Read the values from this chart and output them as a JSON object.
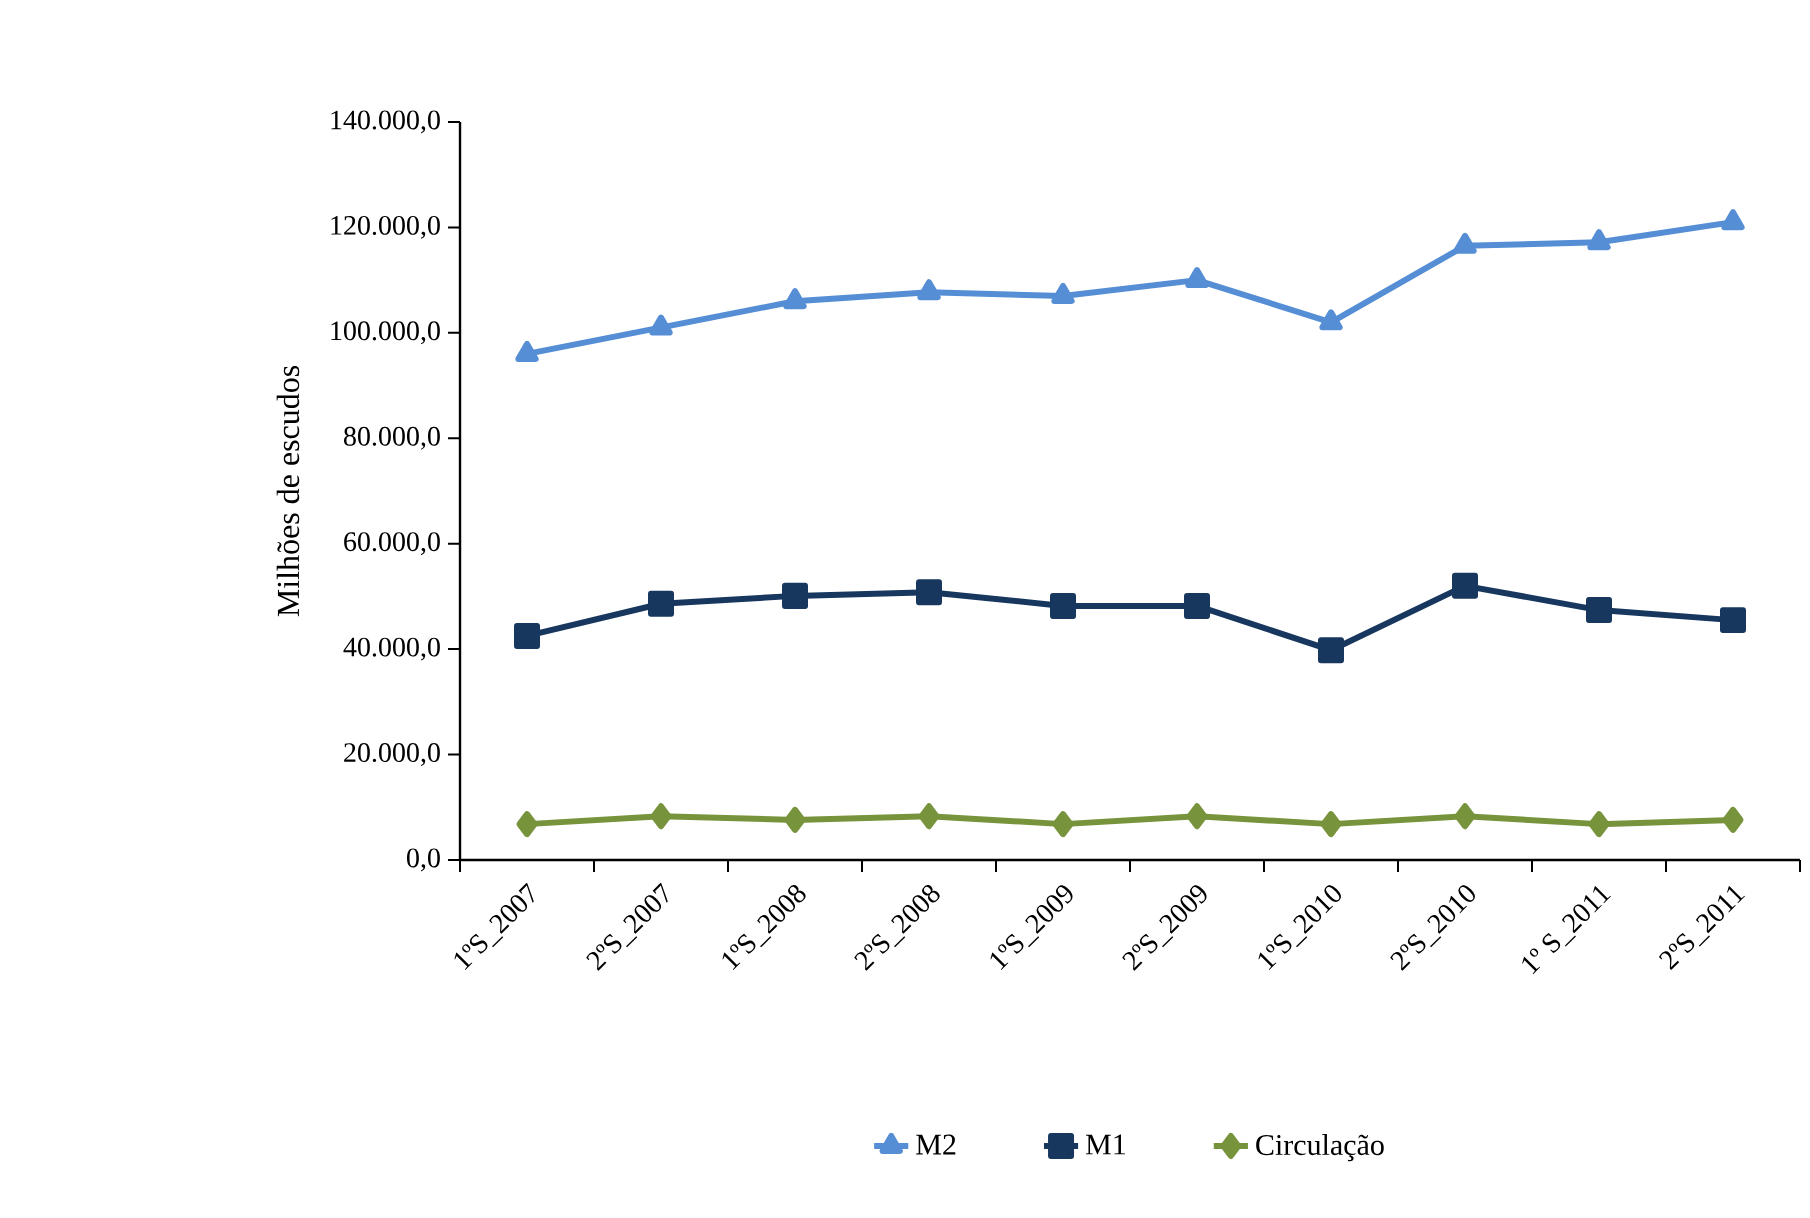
{
  "chart_data": {
    "type": "line",
    "ylabel": "Milhões de escudos",
    "categories": [
      "1ºS_2007",
      "2ºS_2007",
      "1ºS_2008",
      "2ºS_2008",
      "1ºS_2009",
      "2ºS_2009",
      "1ºS_2010",
      "2ºS_2010",
      "1º S_2011",
      "2ºS_2011"
    ],
    "series": [
      {
        "name": "M2",
        "color": "#558ed5",
        "marker": "triangle",
        "values": [
          96000,
          101000,
          106000,
          107700,
          107000,
          110000,
          102000,
          116500,
          117200,
          121000
        ]
      },
      {
        "name": "M1",
        "color": "#17375e",
        "marker": "square",
        "values": [
          42500,
          48600,
          50100,
          50800,
          48200,
          48200,
          39800,
          52000,
          47400,
          45500
        ]
      },
      {
        "name": "Circulação",
        "color": "#77933c",
        "marker": "diamond",
        "values": [
          6800,
          8300,
          7600,
          8300,
          6800,
          8300,
          6800,
          8300,
          6800,
          7600
        ]
      }
    ],
    "ylim": [
      0,
      140000
    ],
    "yticks": [
      {
        "value": 0,
        "label": "0,0"
      },
      {
        "value": 20000,
        "label": "20.000,0"
      },
      {
        "value": 40000,
        "label": "40.000,0"
      },
      {
        "value": 60000,
        "label": "60.000,0"
      },
      {
        "value": 80000,
        "label": "80.000,0"
      },
      {
        "value": 100000,
        "label": "100.000,0"
      },
      {
        "value": 120000,
        "label": "120.000,0"
      },
      {
        "value": 140000,
        "label": "140.000,0"
      }
    ],
    "grid": false,
    "legend": "bottom",
    "line_style": "solid"
  }
}
